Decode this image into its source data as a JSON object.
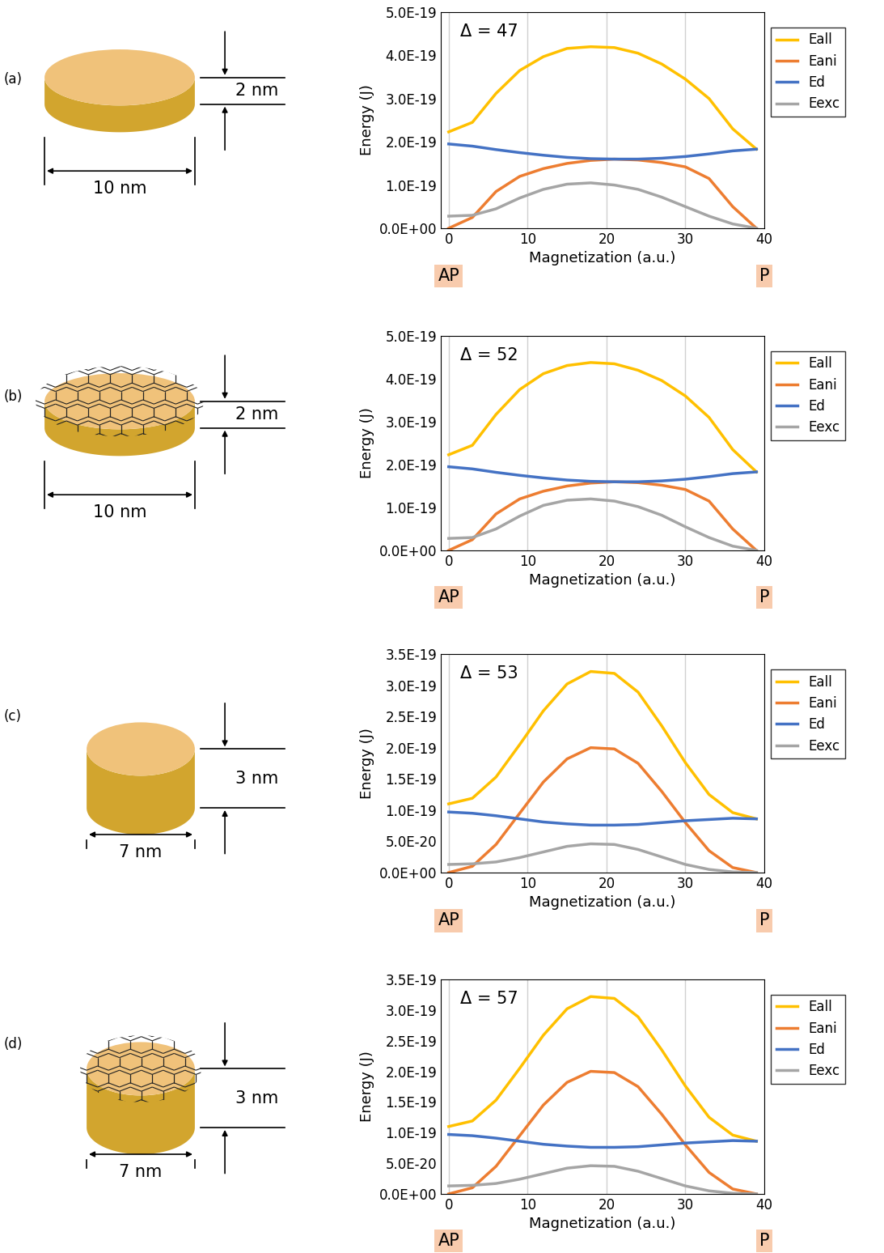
{
  "chart_data": [
    {
      "type": "line",
      "annotation": "Δ = 47",
      "xlabel": "Magnetization (a.u.)",
      "ylabel": "Energy (J)",
      "x": [
        0,
        3,
        6,
        9,
        12,
        15,
        18,
        21,
        24,
        27,
        30,
        33,
        36,
        39
      ],
      "series": [
        {
          "name": "Eall",
          "color": "#FFC000",
          "values": [
            2.23e-19,
            2.45e-19,
            3.12e-19,
            3.65e-19,
            3.97e-19,
            4.16e-19,
            4.2e-19,
            4.18e-19,
            4.05e-19,
            3.8e-19,
            3.45e-19,
            3e-19,
            2.3e-19,
            1.83e-19
          ]
        },
        {
          "name": "Eani",
          "color": "#ED7D31",
          "values": [
            0.0,
            2.5e-20,
            8.5e-20,
            1.2e-19,
            1.38e-19,
            1.5e-19,
            1.57e-19,
            1.6e-19,
            1.58e-19,
            1.52e-19,
            1.42e-19,
            1.15e-19,
            5e-20,
            0.0
          ]
        },
        {
          "name": "Ed",
          "color": "#4472C4",
          "values": [
            1.95e-19,
            1.9e-19,
            1.82e-19,
            1.75e-19,
            1.69e-19,
            1.64e-19,
            1.61e-19,
            1.6e-19,
            1.6e-19,
            1.62e-19,
            1.66e-19,
            1.72e-19,
            1.79e-19,
            1.83e-19
          ]
        },
        {
          "name": "Eexc",
          "color": "#A5A5A5",
          "values": [
            2.8e-20,
            3e-20,
            4.5e-20,
            7e-20,
            9e-20,
            1.02e-19,
            1.05e-19,
            1e-19,
            9e-20,
            7.2e-20,
            5e-20,
            2.8e-20,
            1e-20,
            0.0
          ]
        }
      ],
      "xlim": [
        -1,
        40
      ],
      "xticks": [
        0,
        10,
        20,
        30,
        40
      ],
      "ylim": [
        0,
        5e-19
      ],
      "yticks": [
        {
          "value": 0,
          "label": "0.0E+00"
        },
        {
          "value": 1e-19,
          "label": "1.0E-19"
        },
        {
          "value": 2e-19,
          "label": "2.0E-19"
        },
        {
          "value": 3e-19,
          "label": "3.0E-19"
        },
        {
          "value": 4e-19,
          "label": "4.0E-19"
        },
        {
          "value": 5e-19,
          "label": "5.0E-19"
        }
      ],
      "state_labels": [
        {
          "x": 0,
          "label": "AP"
        },
        {
          "x": 40,
          "label": "P"
        }
      ],
      "grid": "x",
      "legend": "right"
    },
    {
      "type": "line",
      "annotation": "Δ = 52",
      "xlabel": "Magnetization (a.u.)",
      "ylabel": "Energy (J)",
      "x": [
        0,
        3,
        6,
        9,
        12,
        15,
        18,
        21,
        24,
        27,
        30,
        33,
        36,
        39
      ],
      "series": [
        {
          "name": "Eall",
          "color": "#FFC000",
          "values": [
            2.23e-19,
            2.45e-19,
            3.17e-19,
            3.75e-19,
            4.12e-19,
            4.31e-19,
            4.38e-19,
            4.35e-19,
            4.2e-19,
            3.96e-19,
            3.6e-19,
            3.1e-19,
            2.35e-19,
            1.83e-19
          ]
        },
        {
          "name": "Eani",
          "color": "#ED7D31",
          "values": [
            0.0,
            2.5e-20,
            8.5e-20,
            1.2e-19,
            1.38e-19,
            1.5e-19,
            1.57e-19,
            1.6e-19,
            1.58e-19,
            1.52e-19,
            1.42e-19,
            1.15e-19,
            5e-20,
            0.0
          ]
        },
        {
          "name": "Ed",
          "color": "#4472C4",
          "values": [
            1.95e-19,
            1.9e-19,
            1.82e-19,
            1.75e-19,
            1.69e-19,
            1.64e-19,
            1.61e-19,
            1.6e-19,
            1.6e-19,
            1.62e-19,
            1.66e-19,
            1.72e-19,
            1.79e-19,
            1.83e-19
          ]
        },
        {
          "name": "Eexc",
          "color": "#A5A5A5",
          "values": [
            2.8e-20,
            3e-20,
            5e-20,
            8e-20,
            1.05e-19,
            1.17e-19,
            1.2e-19,
            1.15e-19,
            1.02e-19,
            8.2e-20,
            5.5e-20,
            3e-20,
            1e-20,
            0.0
          ]
        }
      ],
      "xlim": [
        -1,
        40
      ],
      "xticks": [
        0,
        10,
        20,
        30,
        40
      ],
      "ylim": [
        0,
        5e-19
      ],
      "yticks": [
        {
          "value": 0,
          "label": "0.0E+00"
        },
        {
          "value": 1e-19,
          "label": "1.0E-19"
        },
        {
          "value": 2e-19,
          "label": "2.0E-19"
        },
        {
          "value": 3e-19,
          "label": "3.0E-19"
        },
        {
          "value": 4e-19,
          "label": "4.0E-19"
        },
        {
          "value": 5e-19,
          "label": "5.0E-19"
        }
      ],
      "state_labels": [
        {
          "x": 0,
          "label": "AP"
        },
        {
          "x": 40,
          "label": "P"
        }
      ],
      "grid": "x",
      "legend": "right"
    },
    {
      "type": "line",
      "annotation": "Δ = 53",
      "xlabel": "Magnetization (a.u.)",
      "ylabel": "Energy (J)",
      "x": [
        0,
        3,
        6,
        9,
        12,
        15,
        18,
        21,
        24,
        27,
        30,
        33,
        36,
        39
      ],
      "series": [
        {
          "name": "Eall",
          "color": "#FFC000",
          "values": [
            1.1e-19,
            1.19e-19,
            1.53e-19,
            2.05e-19,
            2.59e-19,
            3.02e-19,
            3.22e-19,
            3.19e-19,
            2.89e-19,
            2.35e-19,
            1.76e-19,
            1.25e-19,
            9.6e-20,
            8.6e-20
          ]
        },
        {
          "name": "Eani",
          "color": "#ED7D31",
          "values": [
            0.0,
            1e-20,
            4.5e-20,
            9.5e-20,
            1.45e-19,
            1.82e-19,
            2e-19,
            1.98e-19,
            1.75e-19,
            1.3e-19,
            8e-20,
            3.5e-20,
            8e-21,
            0.0
          ]
        },
        {
          "name": "Ed",
          "color": "#4472C4",
          "values": [
            9.7e-20,
            9.5e-20,
            9.1e-20,
            8.6e-20,
            8.1e-20,
            7.8e-20,
            7.6e-20,
            7.6e-20,
            7.7e-20,
            8e-20,
            8.3e-20,
            8.5e-20,
            8.7e-20,
            8.6e-20
          ]
        },
        {
          "name": "Eexc",
          "color": "#A5A5A5",
          "values": [
            1.3e-20,
            1.4e-20,
            1.7e-20,
            2.4e-20,
            3.3e-20,
            4.2e-20,
            4.6e-20,
            4.5e-20,
            3.7e-20,
            2.5e-20,
            1.3e-20,
            5e-21,
            1e-21,
            0.0
          ]
        }
      ],
      "xlim": [
        -1,
        40
      ],
      "xticks": [
        0,
        10,
        20,
        30,
        40
      ],
      "ylim": [
        0,
        3.5e-19
      ],
      "yticks": [
        {
          "value": 0,
          "label": "0.0E+00"
        },
        {
          "value": 5e-20,
          "label": "5.0E-20"
        },
        {
          "value": 1e-19,
          "label": "1.0E-19"
        },
        {
          "value": 1.5e-19,
          "label": "1.5E-19"
        },
        {
          "value": 2e-19,
          "label": "2.0E-19"
        },
        {
          "value": 2.5e-19,
          "label": "2.5E-19"
        },
        {
          "value": 3e-19,
          "label": "3.0E-19"
        },
        {
          "value": 3.5e-19,
          "label": "3.5E-19"
        }
      ],
      "state_labels": [
        {
          "x": 0,
          "label": "AP"
        },
        {
          "x": 40,
          "label": "P"
        }
      ],
      "grid": "x",
      "legend": "right"
    },
    {
      "type": "line",
      "annotation": "Δ = 57",
      "xlabel": "Magnetization (a.u.)",
      "ylabel": "Energy (J)",
      "x": [
        0,
        3,
        6,
        9,
        12,
        15,
        18,
        21,
        24,
        27,
        30,
        33,
        36,
        39
      ],
      "series": [
        {
          "name": "Eall",
          "color": "#FFC000",
          "values": [
            1.1e-19,
            1.19e-19,
            1.53e-19,
            2.05e-19,
            2.59e-19,
            3.02e-19,
            3.22e-19,
            3.19e-19,
            2.89e-19,
            2.35e-19,
            1.76e-19,
            1.25e-19,
            9.6e-20,
            8.6e-20
          ]
        },
        {
          "name": "Eani",
          "color": "#ED7D31",
          "values": [
            0.0,
            1e-20,
            4.5e-20,
            9.5e-20,
            1.45e-19,
            1.82e-19,
            2e-19,
            1.98e-19,
            1.75e-19,
            1.3e-19,
            8e-20,
            3.5e-20,
            8e-21,
            0.0
          ]
        },
        {
          "name": "Ed",
          "color": "#4472C4",
          "values": [
            9.7e-20,
            9.5e-20,
            9.1e-20,
            8.6e-20,
            8.1e-20,
            7.8e-20,
            7.6e-20,
            7.6e-20,
            7.7e-20,
            8e-20,
            8.3e-20,
            8.5e-20,
            8.7e-20,
            8.6e-20
          ]
        },
        {
          "name": "Eexc",
          "color": "#A5A5A5",
          "values": [
            1.3e-20,
            1.4e-20,
            1.7e-20,
            2.4e-20,
            3.3e-20,
            4.2e-20,
            4.6e-20,
            4.5e-20,
            3.7e-20,
            2.5e-20,
            1.3e-20,
            5e-21,
            1e-21,
            0.0
          ]
        }
      ],
      "xlim": [
        -1,
        40
      ],
      "xticks": [
        0,
        10,
        20,
        30,
        40
      ],
      "ylim": [
        0,
        3.5e-19
      ],
      "yticks": [
        {
          "value": 0,
          "label": "0.0E+00"
        },
        {
          "value": 5e-20,
          "label": "5.0E-20"
        },
        {
          "value": 1e-19,
          "label": "1.0E-19"
        },
        {
          "value": 1.5e-19,
          "label": "1.5E-19"
        },
        {
          "value": 2e-19,
          "label": "2.0E-19"
        },
        {
          "value": 2.5e-19,
          "label": "2.5E-19"
        },
        {
          "value": 3e-19,
          "label": "3.0E-19"
        },
        {
          "value": 3.5e-19,
          "label": "3.5E-19"
        }
      ],
      "state_labels": [
        {
          "x": 0,
          "label": "AP"
        },
        {
          "x": 40,
          "label": "P"
        }
      ],
      "grid": "x",
      "legend": "right"
    }
  ],
  "panels": [
    {
      "label": "(a)",
      "thickness": "2 nm",
      "diameter": "10 nm",
      "graphene": false
    },
    {
      "label": "(b)",
      "thickness": "2 nm",
      "diameter": "10 nm",
      "graphene": true
    },
    {
      "label": "(c)",
      "thickness": "3 nm",
      "diameter": "7 nm",
      "graphene": false
    },
    {
      "label": "(d)",
      "thickness": "3 nm",
      "diameter": "7 nm",
      "graphene": true
    }
  ]
}
